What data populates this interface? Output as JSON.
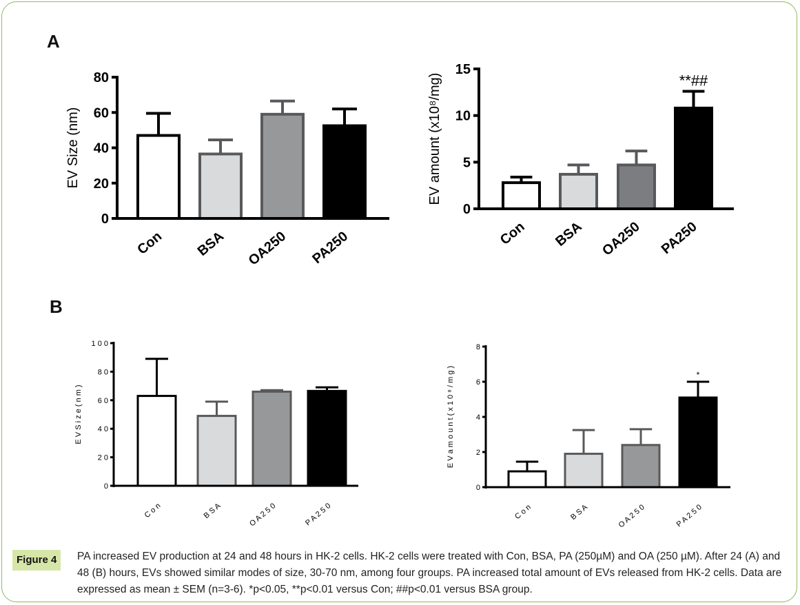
{
  "panels": {
    "A": "A",
    "B": "B"
  },
  "caption": {
    "tag": "Figure 4",
    "text": "PA increased EV production at 24 and 48 hours in HK-2 cells. HK-2 cells were treated with Con, BSA, PA (250µM) and OA (250 µM). After 24 (A) and 48 (B) hours, EVs showed similar modes of size, 30-70 nm, among four groups. PA increased total amount of EVs released from HK-2 cells. Data are expressed as mean ± SEM (n=3-6). *p<0.05, **p<0.01 versus Con; ##p<0.01 versus BSA group."
  },
  "chart_data": [
    {
      "type": "bar",
      "panel": "A",
      "ylabel": "EV Size (nm)",
      "categories": [
        "Con",
        "BSA",
        "OA250",
        "PA250"
      ],
      "values": [
        47,
        36.5,
        59,
        52.5
      ],
      "errors": [
        12.5,
        8,
        7.5,
        9.5
      ],
      "ylim": [
        0,
        80
      ],
      "yticks": [
        "0",
        "20",
        "40",
        "60",
        "80"
      ],
      "annotations": [
        "",
        "",
        "",
        ""
      ],
      "colors": [
        "#ffffff",
        "#d9dadc",
        "#97989a",
        "#000000"
      ],
      "edge_colors": [
        "#000000",
        "#58595b",
        "#58595b",
        "#000000"
      ]
    },
    {
      "type": "bar",
      "panel": "A",
      "ylabel": "EV amount (x10⁸/mg)",
      "categories": [
        "Con",
        "BSA",
        "OA250",
        "PA250"
      ],
      "values": [
        2.8,
        3.7,
        4.7,
        10.8
      ],
      "errors": [
        0.6,
        1.0,
        1.5,
        1.8
      ],
      "ylim": [
        0,
        15
      ],
      "yticks": [
        "0",
        "5",
        "10",
        "15"
      ],
      "annotations": [
        "",
        "",
        "",
        "**##"
      ],
      "colors": [
        "#ffffff",
        "#d9dadc",
        "#7c7d80",
        "#000000"
      ],
      "edge_colors": [
        "#000000",
        "#58595b",
        "#58595b",
        "#000000"
      ]
    },
    {
      "type": "bar",
      "panel": "B",
      "ylabel": "E V  S i z e  ( n m )",
      "categories": [
        "C o n",
        "B S A",
        "O A 2 5 0",
        "P A 2 5 0"
      ],
      "values": [
        63,
        49,
        66,
        66.5
      ],
      "errors": [
        26,
        10,
        1,
        2.5
      ],
      "ylim": [
        0,
        100
      ],
      "yticks": [
        "0",
        "2 0",
        "4 0",
        "6 0",
        "8 0",
        "1 0 0"
      ],
      "annotations": [
        "",
        "",
        "",
        ""
      ],
      "colors": [
        "#ffffff",
        "#d9dadc",
        "#97989a",
        "#000000"
      ],
      "edge_colors": [
        "#000000",
        "#58595b",
        "#58595b",
        "#000000"
      ]
    },
    {
      "type": "bar",
      "panel": "B",
      "ylabel": "E V  a m o u n t  ( x 1 0 ⁸ / m g )",
      "categories": [
        "C o n",
        "B S A",
        "O A 2 5 0",
        "P A 2 5 0"
      ],
      "values": [
        0.9,
        1.9,
        2.4,
        5.1
      ],
      "errors": [
        0.55,
        1.35,
        0.9,
        0.9
      ],
      "ylim": [
        0,
        8
      ],
      "yticks": [
        "0",
        "2",
        "4",
        "6",
        "8"
      ],
      "annotations": [
        "",
        "",
        "",
        "*"
      ],
      "colors": [
        "#ffffff",
        "#d9dadc",
        "#97989a",
        "#000000"
      ],
      "edge_colors": [
        "#000000",
        "#58595b",
        "#58595b",
        "#000000"
      ]
    }
  ]
}
